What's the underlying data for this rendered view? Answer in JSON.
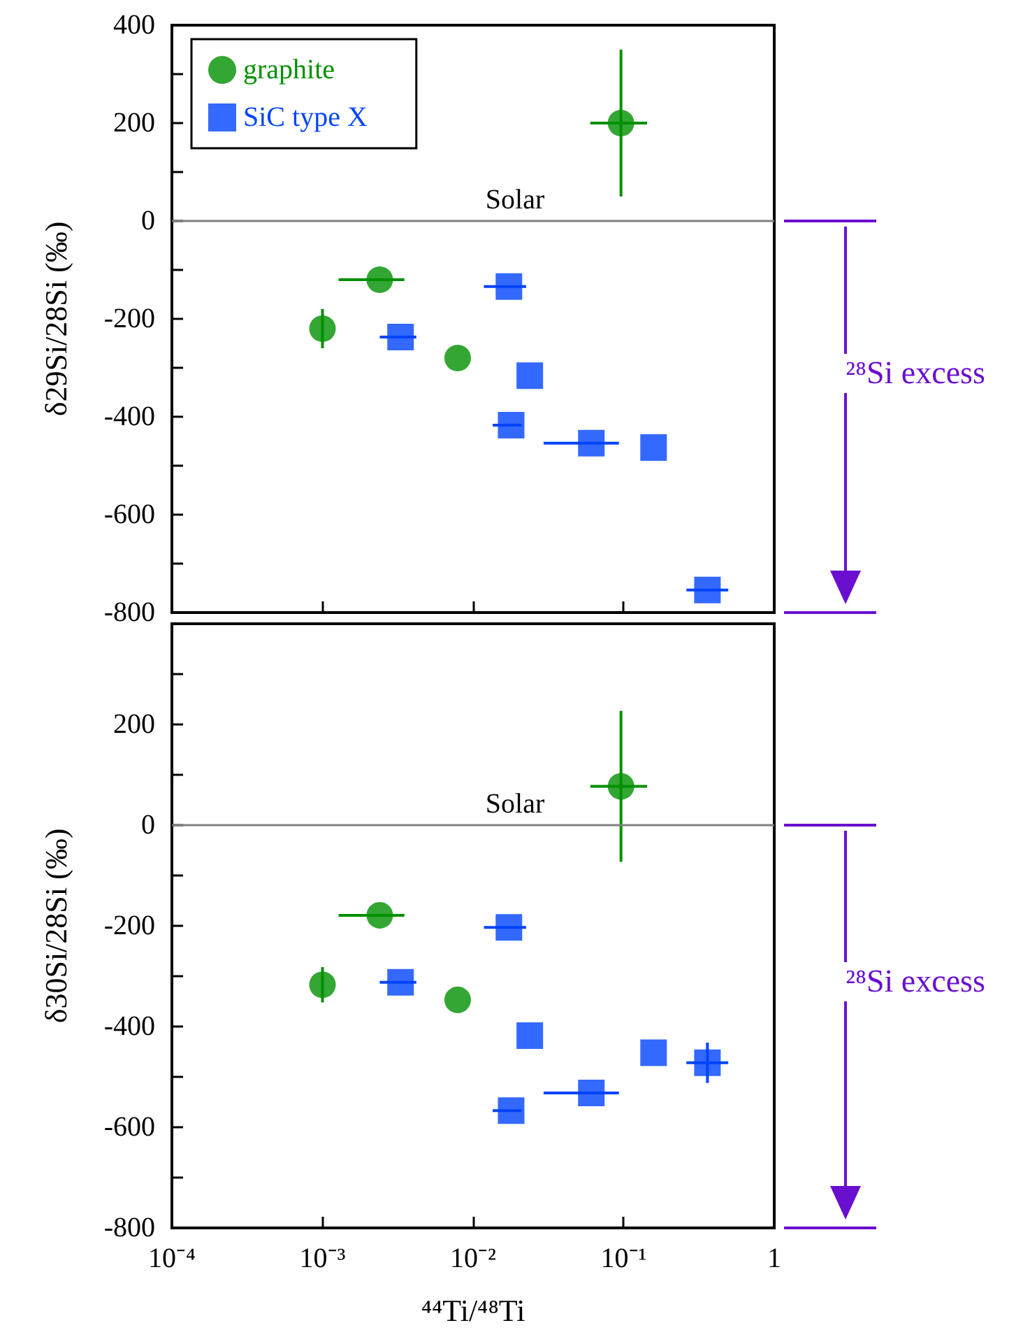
{
  "chart_data": [
    {
      "type": "scatter",
      "ylabel": "δ29Si/28Si (‰)",
      "annotations": [
        "²⁸Si excess"
      ],
      "log": "x",
      "xlim": [
        0.0001,
        1
      ],
      "xticks": [
        {
          "value": 0.0001,
          "label": null
        },
        {
          "value": 0.001,
          "label": null
        },
        {
          "value": 0.01,
          "label": null
        },
        {
          "value": 0.1,
          "label": null
        },
        {
          "value": 1,
          "label": null
        }
      ],
      "ylim": [
        -800,
        400
      ],
      "yticks": [
        400,
        {
          "value": 300,
          "label": null
        },
        200,
        {
          "value": 100,
          "label": null
        },
        0,
        {
          "value": -100,
          "label": null
        },
        -200,
        {
          "value": -300,
          "label": null
        },
        -400,
        {
          "value": -500,
          "label": null
        },
        -600,
        {
          "value": -700,
          "label": null
        },
        -800
      ],
      "tick_labels": "y",
      "grid": false,
      "legend": "top left",
      "ref_lines": [
        {
          "axis": "y",
          "value": 0,
          "label": "Solar",
          "color": "#808080"
        }
      ],
      "series": [
        {
          "name": "graphite",
          "color": "#009000",
          "marker": "circle",
          "x": [
            0.001,
            0.0024,
            0.0079,
            0.096
          ],
          "values": [
            -220,
            -120,
            -280,
            200
          ],
          "errors": [
            40,
            null,
            null,
            150
          ],
          "xerrors": [
            null,
            [
              0.00128,
              0.0035
            ],
            null,
            [
              0.06,
              0.143
            ]
          ]
        },
        {
          "name": "SiC type X",
          "color": "#0044ff",
          "marker": "square",
          "x": [
            0.0033,
            0.0173,
            0.0238,
            0.0179,
            0.061,
            0.158,
            0.36
          ],
          "values": [
            -237,
            -134,
            -316,
            -417,
            -454,
            -463,
            -754
          ],
          "errors": [
            null,
            null,
            null,
            null,
            null,
            null,
            null
          ],
          "xerrors": [
            [
              0.0024,
              0.0042
            ],
            [
              0.0118,
              0.0225
            ],
            null,
            [
              0.0135,
              0.021
            ],
            [
              0.0294,
              0.093
            ],
            null,
            [
              0.261,
              0.495
            ]
          ]
        }
      ]
    },
    {
      "type": "scatter",
      "xlabel": "⁴⁴Ti/⁴⁸Ti",
      "ylabel": "δ30Si/28Si (‰)",
      "annotations": [
        "²⁸Si excess"
      ],
      "log": "x",
      "xlim": [
        0.0001,
        1
      ],
      "xticks": [
        {
          "value": 0.0001,
          "label": "10⁻⁴"
        },
        {
          "value": 0.001,
          "label": "10⁻³"
        },
        {
          "value": 0.01,
          "label": "10⁻²"
        },
        {
          "value": 0.1,
          "label": "10⁻¹"
        },
        1
      ],
      "ylim": [
        -800,
        400
      ],
      "yticks": [
        {
          "value": 400,
          "label": null
        },
        {
          "value": 300,
          "label": null
        },
        200,
        {
          "value": 100,
          "label": null
        },
        0,
        {
          "value": -100,
          "label": null
        },
        -200,
        {
          "value": -300,
          "label": null
        },
        -400,
        {
          "value": -500,
          "label": null
        },
        -600,
        {
          "value": -700,
          "label": null
        },
        -800
      ],
      "grid": false,
      "legend": false,
      "ref_lines": [
        {
          "axis": "y",
          "value": 0,
          "label": "Solar",
          "color": "#808080"
        }
      ],
      "series": [
        {
          "color": "#009000",
          "marker": "circle",
          "x": [
            0.001,
            0.0024,
            0.0079,
            0.096
          ],
          "values": [
            -317,
            -179,
            -347,
            77
          ],
          "errors": [
            35,
            null,
            null,
            150
          ],
          "xerrors": [
            null,
            [
              0.00128,
              0.0035
            ],
            null,
            [
              0.06,
              0.143
            ]
          ]
        },
        {
          "color": "#0044ff",
          "marker": "square",
          "x": [
            0.0033,
            0.0173,
            0.0238,
            0.0179,
            0.061,
            0.158,
            0.36
          ],
          "values": [
            -312,
            -203,
            -418,
            -567,
            -532,
            -452,
            -472
          ],
          "errors": [
            null,
            null,
            null,
            null,
            null,
            null,
            40
          ],
          "xerrors": [
            [
              0.0024,
              0.0042
            ],
            [
              0.0118,
              0.0225
            ],
            null,
            [
              0.0135,
              0.021
            ],
            [
              0.0294,
              0.093
            ],
            null,
            [
              0.261,
              0.495
            ]
          ]
        }
      ]
    }
  ]
}
